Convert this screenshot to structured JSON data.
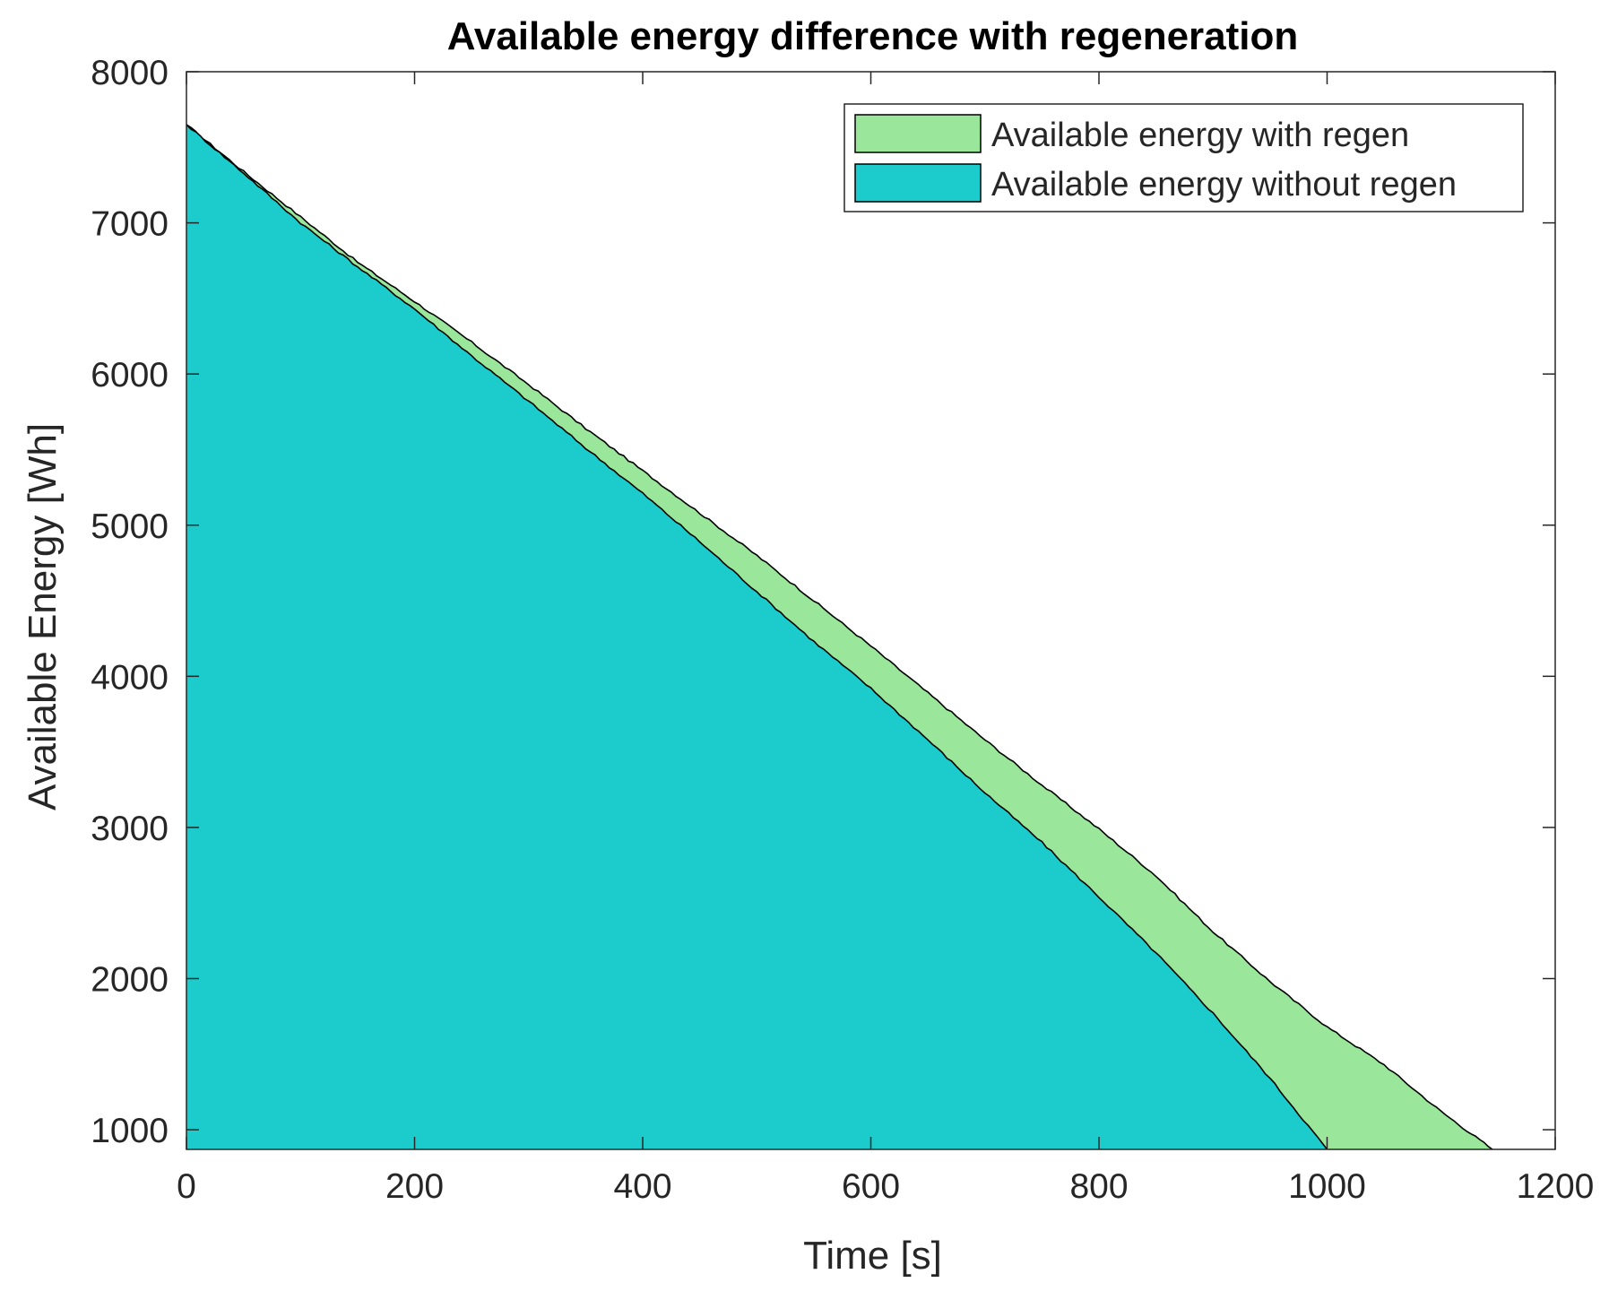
{
  "chart_data": {
    "type": "area",
    "title": "Available energy difference with regeneration",
    "xlabel": "Time [s]",
    "ylabel": "Available Energy [Wh]",
    "xlim": [
      0,
      1200
    ],
    "ylim": [
      870,
      8000
    ],
    "xticks": [
      0,
      200,
      400,
      600,
      800,
      1000,
      1200
    ],
    "yticks": [
      1000,
      2000,
      3000,
      4000,
      5000,
      6000,
      7000,
      8000
    ],
    "x": [
      0,
      50,
      100,
      150,
      200,
      250,
      300,
      350,
      400,
      450,
      500,
      550,
      600,
      650,
      700,
      750,
      800,
      850,
      900,
      950,
      1000,
      1050,
      1100,
      1145
    ],
    "series": [
      {
        "name": "Available energy with regen",
        "color": "#9ae69a",
        "values": [
          7650,
          7340,
          7040,
          6740,
          6480,
          6210,
          5930,
          5640,
          5360,
          5080,
          4800,
          4500,
          4200,
          3890,
          3580,
          3280,
          2990,
          2680,
          2310,
          1980,
          1680,
          1430,
          1120,
          870
        ]
      },
      {
        "name": "Available energy without regen",
        "color": "#1ccccc",
        "values": [
          7650,
          7330,
          7000,
          6710,
          6430,
          6120,
          5820,
          5510,
          5210,
          4890,
          4560,
          4230,
          3920,
          3580,
          3230,
          2900,
          2540,
          2170,
          1770,
          1340,
          870,
          null,
          null,
          null
        ]
      }
    ]
  }
}
